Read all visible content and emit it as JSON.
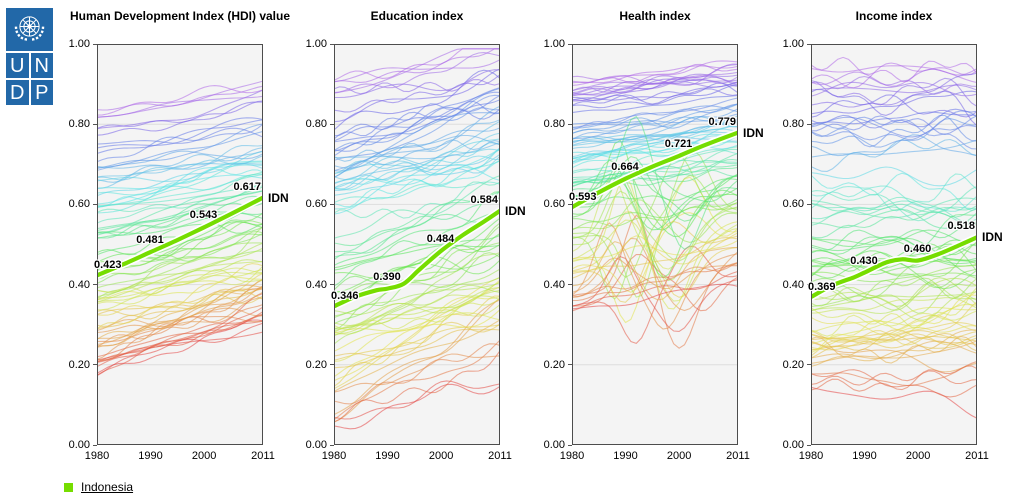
{
  "page": {
    "background": "#ffffff"
  },
  "logo": {
    "letters": [
      "U",
      "N",
      "D",
      "P"
    ],
    "blue": "#2268a8"
  },
  "legend": {
    "label": "Indonesia",
    "color": "#76dd00"
  },
  "highlight": {
    "code": "IDN",
    "name": "Indonesia",
    "color": "#76dd00"
  },
  "axes": {
    "y_tick_labels": [
      "1.00",
      "0.80",
      "0.60",
      "0.40",
      "0.20",
      "0.00"
    ],
    "x_tick_labels": [
      "1980",
      "1990",
      "2000",
      "2011"
    ]
  },
  "chart_data": [
    {
      "type": "line",
      "title": "Human Development Index (HDI) value",
      "xlabel": "",
      "ylabel": "",
      "x_range": [
        1980,
        2011
      ],
      "y_range": [
        0,
        1
      ],
      "x_ticks": [
        1980,
        1990,
        2000,
        2011
      ],
      "y_ticks": [
        0,
        0.2,
        0.4,
        0.6,
        0.8,
        1
      ],
      "grid": true,
      "highlight_series": {
        "name": "Indonesia",
        "code": "IDN",
        "labeled_points": [
          {
            "year": 1980,
            "value": 0.423
          },
          {
            "year": 1990,
            "value": 0.481
          },
          {
            "year": 2000,
            "value": 0.543
          },
          {
            "year": 2011,
            "value": 0.617
          }
        ],
        "points": [
          [
            1980,
            0.423
          ],
          [
            1985,
            0.451
          ],
          [
            1990,
            0.481
          ],
          [
            1995,
            0.511
          ],
          [
            2000,
            0.543
          ],
          [
            2005,
            0.576
          ],
          [
            2011,
            0.617
          ]
        ]
      },
      "background_lines": {
        "count": 88,
        "start_range": [
          0.17,
          0.85
        ],
        "rise_range": [
          0.05,
          0.18
        ],
        "wiggle": 0.016,
        "seed": 101
      }
    },
    {
      "type": "line",
      "title": "Education index",
      "xlabel": "",
      "ylabel": "",
      "x_range": [
        1980,
        2011
      ],
      "y_range": [
        0,
        1
      ],
      "x_ticks": [
        1980,
        1990,
        2000,
        2011
      ],
      "y_ticks": [
        0,
        0.2,
        0.4,
        0.6,
        0.8,
        1
      ],
      "grid": true,
      "highlight_series": {
        "name": "Indonesia",
        "code": "IDN",
        "labeled_points": [
          {
            "year": 1980,
            "value": 0.346
          },
          {
            "year": 1990,
            "value": 0.39
          },
          {
            "year": 2000,
            "value": 0.484
          },
          {
            "year": 2011,
            "value": 0.584
          }
        ],
        "points": [
          [
            1980,
            0.346
          ],
          [
            1984,
            0.37
          ],
          [
            1988,
            0.386
          ],
          [
            1990,
            0.39
          ],
          [
            1993,
            0.402
          ],
          [
            1996,
            0.438
          ],
          [
            2000,
            0.484
          ],
          [
            2004,
            0.523
          ],
          [
            2008,
            0.557
          ],
          [
            2011,
            0.584
          ]
        ]
      },
      "background_lines": {
        "count": 90,
        "start_range": [
          0.04,
          0.93
        ],
        "rise_range": [
          0.05,
          0.26
        ],
        "wiggle": 0.022,
        "seed": 202
      }
    },
    {
      "type": "line",
      "title": "Health index",
      "xlabel": "",
      "ylabel": "",
      "x_range": [
        1980,
        2011
      ],
      "y_range": [
        0,
        1
      ],
      "x_ticks": [
        1980,
        1990,
        2000,
        2011
      ],
      "y_ticks": [
        0,
        0.2,
        0.4,
        0.6,
        0.8,
        1
      ],
      "grid": true,
      "highlight_series": {
        "name": "Indonesia",
        "code": "IDN",
        "labeled_points": [
          {
            "year": 1980,
            "value": 0.593
          },
          {
            "year": 1990,
            "value": 0.664
          },
          {
            "year": 2000,
            "value": 0.721
          },
          {
            "year": 2011,
            "value": 0.779
          }
        ],
        "points": [
          [
            1980,
            0.593
          ],
          [
            1985,
            0.63
          ],
          [
            1990,
            0.664
          ],
          [
            1995,
            0.694
          ],
          [
            2000,
            0.721
          ],
          [
            2005,
            0.749
          ],
          [
            2011,
            0.779
          ]
        ]
      },
      "background_lines": {
        "count": 92,
        "start_range": [
          0.34,
          0.91
        ],
        "rise_range": [
          0.04,
          0.13
        ],
        "wiggle": 0.014,
        "seed": 303,
        "swings": {
          "threshold": 0.63,
          "prob": 0.8,
          "amp": 0.14
        }
      }
    },
    {
      "type": "line",
      "title": "Income index",
      "xlabel": "",
      "ylabel": "",
      "x_range": [
        1980,
        2011
      ],
      "y_range": [
        0,
        1
      ],
      "x_ticks": [
        1980,
        1990,
        2000,
        2011
      ],
      "y_ticks": [
        0,
        0.2,
        0.4,
        0.6,
        0.8,
        1
      ],
      "grid": true,
      "highlight_series": {
        "name": "Indonesia",
        "code": "IDN",
        "labeled_points": [
          {
            "year": 1980,
            "value": 0.369
          },
          {
            "year": 1990,
            "value": 0.43
          },
          {
            "year": 2000,
            "value": 0.46
          },
          {
            "year": 2011,
            "value": 0.518
          }
        ],
        "points": [
          [
            1980,
            0.369
          ],
          [
            1984,
            0.398
          ],
          [
            1988,
            0.418
          ],
          [
            1990,
            0.43
          ],
          [
            1994,
            0.455
          ],
          [
            1997,
            0.463
          ],
          [
            2000,
            0.46
          ],
          [
            2004,
            0.477
          ],
          [
            2008,
            0.5
          ],
          [
            2011,
            0.518
          ]
        ]
      },
      "background_lines": {
        "count": 88,
        "start_range": [
          0.13,
          0.95
        ],
        "rise_range": [
          -0.07,
          0.12
        ],
        "wiggle": 0.027,
        "seed": 404
      }
    }
  ]
}
